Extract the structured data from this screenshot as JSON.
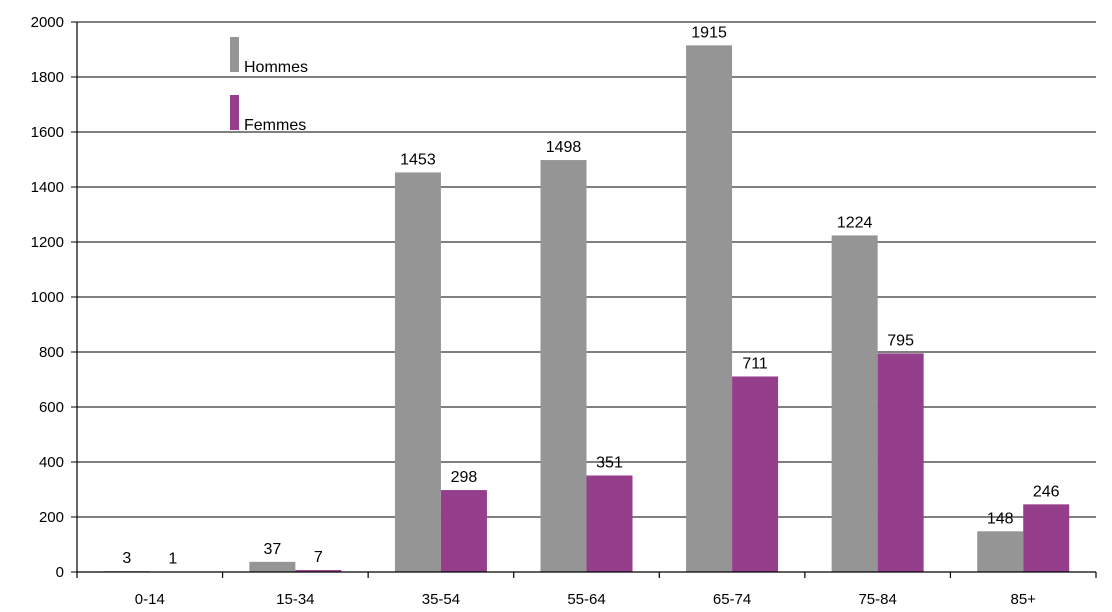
{
  "chart_data": {
    "type": "bar",
    "categories": [
      "0-14",
      "15-34",
      "35-54",
      "55-64",
      "65-74",
      "75-84",
      "85+"
    ],
    "series": [
      {
        "name": "Hommes",
        "values": [
          3,
          37,
          1453,
          1498,
          1915,
          1224,
          148
        ],
        "color": "#959595"
      },
      {
        "name": "Femmes",
        "values": [
          1,
          7,
          298,
          351,
          711,
          795,
          246
        ],
        "color": "#953f8c"
      }
    ],
    "ylim": [
      0,
      2000
    ],
    "yticks": [
      "0",
      "200",
      "400",
      "600",
      "800",
      "1000",
      "1200",
      "1400",
      "1600",
      "1800",
      "2000"
    ],
    "grid": true,
    "legend_position": "top-left",
    "title": "",
    "xlabel": "",
    "ylabel": ""
  }
}
